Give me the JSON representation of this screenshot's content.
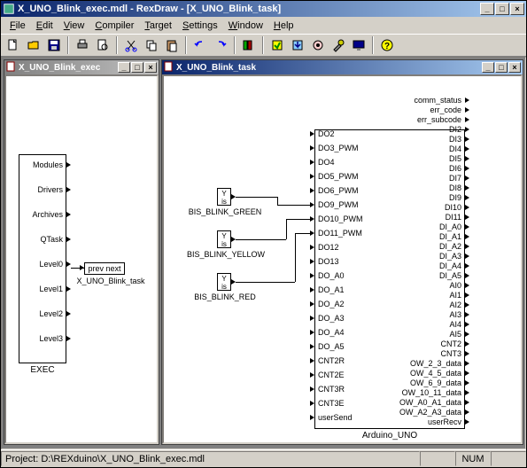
{
  "window": {
    "title": "X_UNO_Blink_exec.mdl - RexDraw - [X_UNO_Blink_task]"
  },
  "menu": {
    "file": "File",
    "edit": "Edit",
    "view": "View",
    "compiler": "Compiler",
    "target": "Target",
    "settings": "Settings",
    "window": "Window",
    "help": "Help"
  },
  "child1": {
    "title": "X_UNO_Blink_exec"
  },
  "child2": {
    "title": "X_UNO_Blink_task"
  },
  "exec": {
    "label": "EXEC",
    "ports": [
      "Modules",
      "Drivers",
      "Archives",
      "QTask",
      "Level0",
      "Level1",
      "Level2",
      "Level3"
    ]
  },
  "prev_next": {
    "text": "prev  next",
    "label": "X_UNO_Blink_task"
  },
  "bis": {
    "y": "Y",
    "is": "is",
    "green": "BIS_BLINK_GREEN",
    "yellow": "BIS_BLINK_YELLOW",
    "red": "BIS_BLINK_RED"
  },
  "arduino": {
    "label": "Arduino_UNO",
    "left_ports": [
      "DO2",
      "DO3_PWM",
      "DO4",
      "DO5_PWM",
      "DO6_PWM",
      "DO9_PWM",
      "DO10_PWM",
      "DO11_PWM",
      "DO12",
      "DO13",
      "DO_A0",
      "DO_A1",
      "DO_A2",
      "DO_A3",
      "DO_A4",
      "DO_A5",
      "CNT2R",
      "CNT2E",
      "CNT3R",
      "CNT3E",
      "userSend"
    ],
    "right_ports": [
      "comm_status",
      "err_code",
      "err_subcode",
      "DI2",
      "DI3",
      "DI4",
      "DI5",
      "DI6",
      "DI7",
      "DI8",
      "DI9",
      "DI10",
      "DI11",
      "DI_A0",
      "DI_A1",
      "DI_A2",
      "DI_A3",
      "DI_A4",
      "DI_A5",
      "AI0",
      "AI1",
      "AI2",
      "AI3",
      "AI4",
      "AI5",
      "CNT2",
      "CNT3",
      "OW_2_3_data",
      "OW_4_5_data",
      "OW_6_9_data",
      "OW_10_11_data",
      "OW_A0_A1_data",
      "OW_A2_A3_data",
      "userRecv"
    ]
  },
  "status": {
    "project": "Project: D:\\REXduino\\X_UNO_Blink_exec.mdl",
    "num": "NUM"
  }
}
